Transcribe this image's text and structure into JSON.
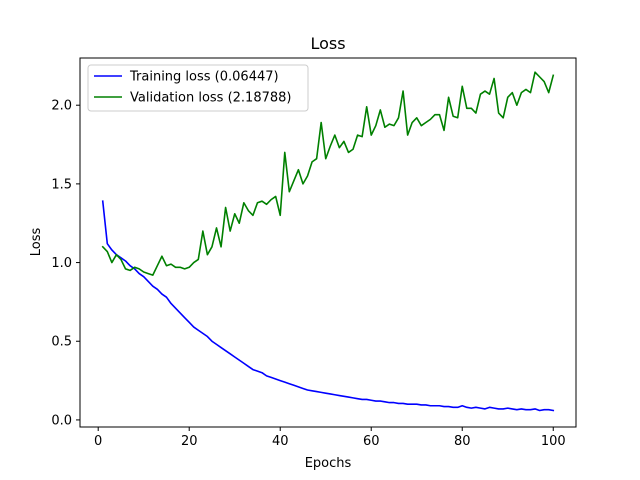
{
  "chart_data": {
    "type": "line",
    "title": "Loss",
    "xlabel": "Epochs",
    "ylabel": "Loss",
    "xlim": [
      -4,
      105
    ],
    "ylim": [
      -0.045,
      2.3
    ],
    "xticks": [
      0,
      20,
      40,
      60,
      80,
      100
    ],
    "yticks": [
      0.0,
      0.5,
      1.0,
      1.5,
      2.0
    ],
    "xtick_labels": [
      "0",
      "20",
      "40",
      "60",
      "80",
      "100"
    ],
    "ytick_labels": [
      "0.0",
      "0.5",
      "1.0",
      "1.5",
      "2.0"
    ],
    "grid": false,
    "legend_position": "top-left",
    "x_start": 1,
    "series": [
      {
        "name": "Training loss (0.06447)",
        "color": "#0000ff",
        "values": [
          1.39,
          1.12,
          1.08,
          1.05,
          1.03,
          1.01,
          0.98,
          0.96,
          0.93,
          0.91,
          0.88,
          0.85,
          0.83,
          0.8,
          0.78,
          0.74,
          0.71,
          0.68,
          0.65,
          0.62,
          0.59,
          0.57,
          0.55,
          0.53,
          0.5,
          0.48,
          0.46,
          0.44,
          0.42,
          0.4,
          0.38,
          0.36,
          0.34,
          0.32,
          0.31,
          0.3,
          0.28,
          0.27,
          0.26,
          0.25,
          0.24,
          0.23,
          0.22,
          0.21,
          0.2,
          0.19,
          0.185,
          0.18,
          0.175,
          0.17,
          0.165,
          0.16,
          0.155,
          0.15,
          0.145,
          0.14,
          0.135,
          0.13,
          0.13,
          0.125,
          0.12,
          0.12,
          0.115,
          0.11,
          0.11,
          0.105,
          0.105,
          0.1,
          0.1,
          0.1,
          0.095,
          0.095,
          0.09,
          0.09,
          0.09,
          0.085,
          0.085,
          0.08,
          0.08,
          0.09,
          0.08,
          0.075,
          0.08,
          0.075,
          0.07,
          0.08,
          0.075,
          0.07,
          0.07,
          0.075,
          0.07,
          0.065,
          0.07,
          0.065,
          0.065,
          0.07,
          0.06,
          0.065,
          0.065,
          0.06
        ]
      },
      {
        "name": "Validation loss (2.18788)",
        "color": "#008000",
        "values": [
          1.1,
          1.07,
          1.0,
          1.05,
          1.02,
          0.96,
          0.95,
          0.97,
          0.96,
          0.94,
          0.93,
          0.92,
          0.98,
          1.04,
          0.98,
          0.99,
          0.97,
          0.97,
          0.96,
          0.97,
          1.0,
          1.02,
          1.2,
          1.05,
          1.1,
          1.22,
          1.1,
          1.35,
          1.2,
          1.31,
          1.25,
          1.38,
          1.33,
          1.3,
          1.38,
          1.39,
          1.37,
          1.4,
          1.42,
          1.3,
          1.7,
          1.45,
          1.52,
          1.59,
          1.5,
          1.55,
          1.64,
          1.66,
          1.89,
          1.66,
          1.74,
          1.81,
          1.73,
          1.77,
          1.7,
          1.72,
          1.81,
          1.8,
          1.99,
          1.81,
          1.87,
          1.97,
          1.86,
          1.88,
          1.87,
          1.92,
          2.09,
          1.81,
          1.89,
          1.92,
          1.87,
          1.89,
          1.91,
          1.94,
          1.94,
          1.84,
          2.05,
          1.93,
          1.92,
          2.12,
          1.98,
          1.98,
          1.95,
          2.07,
          2.09,
          2.07,
          2.17,
          1.95,
          1.92,
          2.05,
          2.08,
          2.0,
          2.08,
          2.1,
          2.08,
          2.21,
          2.18,
          2.15,
          2.08,
          2.19
        ]
      }
    ]
  }
}
